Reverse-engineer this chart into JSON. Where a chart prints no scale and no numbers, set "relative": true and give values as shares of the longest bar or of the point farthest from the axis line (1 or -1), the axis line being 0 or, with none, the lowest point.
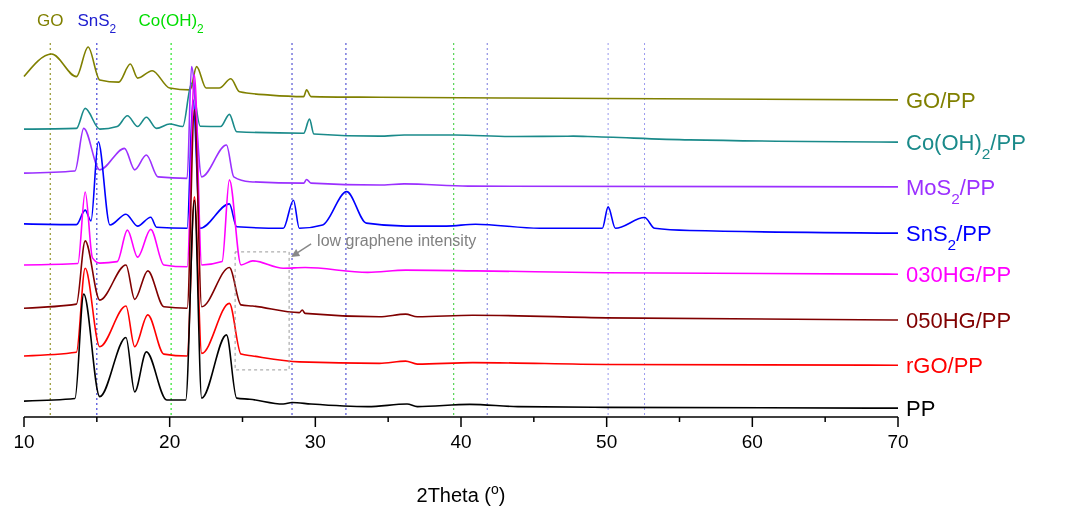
{
  "chart_data": {
    "type": "line",
    "relative": true,
    "xlabel": "2Theta ($^{o}$)",
    "xlim": [
      10,
      70
    ],
    "xticks": [
      10,
      {
        "value": 15,
        "label": null
      },
      20,
      {
        "value": 25,
        "label": null
      },
      30,
      {
        "value": 35,
        "label": null
      },
      40,
      {
        "value": 45,
        "label": null
      },
      50,
      {
        "value": 55,
        "label": null
      },
      60,
      {
        "value": 65,
        "label": null
      },
      70
    ],
    "tick_labels": "x",
    "line_style": "solid",
    "series": [
      {
        "name": "GO/PP",
        "color": "#808000",
        "x": [
          10,
          11.9,
          13.6,
          14.4,
          15.2,
          16.5,
          17.3,
          17.8,
          18.8,
          20.0,
          21.4,
          21.85,
          22.5,
          23.4,
          24.2,
          24.8,
          26.9,
          29.2,
          29.4,
          29.7,
          34.4,
          50,
          70
        ],
        "values": [
          0.92,
          0.981,
          0.92,
          1.0,
          0.911,
          0.905,
          0.954,
          0.916,
          0.936,
          0.889,
          0.884,
          0.947,
          0.889,
          0.889,
          0.914,
          0.879,
          0.87,
          0.866,
          0.884,
          0.866,
          0.864,
          0.861,
          0.857
        ]
      },
      {
        "name": "Co(OH)$_{2}$/PP",
        "color": "#1a8a8a",
        "x": [
          10,
          13.6,
          14.2,
          15.2,
          16.4,
          17.1,
          17.8,
          18.4,
          19.1,
          20.0,
          20.9,
          21.5,
          22.1,
          23.5,
          24.1,
          24.6,
          29.2,
          29.6,
          29.9,
          34.4,
          36.1,
          39.6,
          43.4,
          47.7,
          48.7,
          55.7,
          70
        ],
        "values": [
          0.778,
          0.78,
          0.834,
          0.778,
          0.785,
          0.814,
          0.785,
          0.81,
          0.78,
          0.792,
          0.785,
          0.902,
          0.786,
          0.785,
          0.818,
          0.771,
          0.767,
          0.805,
          0.765,
          0.759,
          0.762,
          0.762,
          0.758,
          0.759,
          0.758,
          0.749,
          0.743
        ]
      },
      {
        "name": "MoS$_{2}$/PP",
        "color": "#9b30ff",
        "x": [
          10,
          13.5,
          14.1,
          15.2,
          16.9,
          17.6,
          18.4,
          19.2,
          21.2,
          21.5,
          22.2,
          23.9,
          24.4,
          25.5,
          29.2,
          29.4,
          29.7,
          34.4,
          36.1,
          40.5,
          70
        ],
        "values": [
          0.659,
          0.665,
          0.78,
          0.668,
          0.726,
          0.668,
          0.708,
          0.649,
          0.645,
          0.947,
          0.649,
          0.735,
          0.649,
          0.636,
          0.632,
          0.642,
          0.632,
          0.627,
          0.63,
          0.624,
          0.622
        ]
      },
      {
        "name": "SnS$_{2}$/PP",
        "color": "#0000ff",
        "x": [
          10,
          13.6,
          14.2,
          14.6,
          15.1,
          15.9,
          17.0,
          17.8,
          18.7,
          19.1,
          21.2,
          21.6,
          22.1,
          24.1,
          24.6,
          27.8,
          28.5,
          28.9,
          30.5,
          32.15,
          33.5,
          36.2,
          39,
          41,
          45.4,
          49.7,
          50.1,
          50.6,
          52.6,
          53.3,
          55.7,
          70
        ],
        "values": [
          0.522,
          0.52,
          0.559,
          0.53,
          0.744,
          0.519,
          0.548,
          0.516,
          0.54,
          0.513,
          0.51,
          0.857,
          0.51,
          0.576,
          0.514,
          0.51,
          0.586,
          0.51,
          0.519,
          0.609,
          0.524,
          0.516,
          0.516,
          0.521,
          0.51,
          0.51,
          0.568,
          0.51,
          0.539,
          0.51,
          0.504,
          0.497
        ]
      },
      {
        "name": "030HG/PP",
        "color": "#ff00ff",
        "x": [
          10,
          13.7,
          14.2,
          14.7,
          15.2,
          16.4,
          17.1,
          17.8,
          18.7,
          19.6,
          21.2,
          21.7,
          22.2,
          23.6,
          24.1,
          24.9,
          25.7,
          27.8,
          29.3,
          33.6,
          36.2,
          41,
          50,
          70
        ],
        "values": [
          0.411,
          0.415,
          0.608,
          0.43,
          0.416,
          0.42,
          0.505,
          0.432,
          0.507,
          0.411,
          0.406,
          0.924,
          0.411,
          0.42,
          0.641,
          0.411,
          0.422,
          0.402,
          0.404,
          0.391,
          0.397,
          0.395,
          0.39,
          0.386
        ]
      },
      {
        "name": "050HG/PP",
        "color": "#800000",
        "x": [
          10,
          13.6,
          14.2,
          15.2,
          17.0,
          17.6,
          18.5,
          19.6,
          21.2,
          21.7,
          22.2,
          24.1,
          24.9,
          25.7,
          28.9,
          29.1,
          29.3,
          34.4,
          36.2,
          37,
          40.8,
          50,
          70
        ],
        "values": [
          0.294,
          0.305,
          0.476,
          0.316,
          0.411,
          0.318,
          0.395,
          0.298,
          0.294,
          0.83,
          0.298,
          0.404,
          0.303,
          0.3,
          0.282,
          0.289,
          0.28,
          0.271,
          0.278,
          0.271,
          0.275,
          0.268,
          0.262
        ]
      },
      {
        "name": "rGO/PP",
        "color": "#ff0000",
        "x": [
          10,
          13.6,
          14.2,
          15.2,
          17.0,
          17.6,
          18.5,
          19.6,
          21.2,
          21.7,
          22.2,
          24.1,
          24.9,
          25.7,
          28.9,
          34.4,
          36.2,
          37,
          40.8,
          50,
          70
        ],
        "values": [
          0.165,
          0.175,
          0.402,
          0.19,
          0.3,
          0.19,
          0.276,
          0.17,
          0.165,
          0.595,
          0.172,
          0.307,
          0.17,
          0.165,
          0.149,
          0.145,
          0.151,
          0.143,
          0.147,
          0.142,
          0.14
        ]
      },
      {
        "name": "PP",
        "color": "#000000",
        "x": [
          10,
          13.5,
          14.1,
          15.2,
          17.0,
          17.6,
          18.4,
          19.8,
          21.1,
          21.7,
          22.2,
          23.9,
          24.6,
          25.5,
          27.8,
          28.4,
          29.7,
          33.6,
          36.3,
          37,
          40.6,
          43.9,
          50,
          70
        ],
        "values": [
          0.043,
          0.05,
          0.332,
          0.055,
          0.215,
          0.068,
          0.176,
          0.046,
          0.046,
          0.586,
          0.051,
          0.222,
          0.051,
          0.048,
          0.035,
          0.039,
          0.035,
          0.028,
          0.035,
          0.028,
          0.034,
          0.028,
          0.026,
          0.024
        ]
      }
    ],
    "ref_lines": [
      {
        "axis": "x",
        "value": 11.8,
        "label": "GO",
        "color": "#808000",
        "line_style": "dotted"
      },
      {
        "axis": "x",
        "value": 15.0,
        "label": "SnS$_{2}$",
        "color": "#2020d0",
        "line_style": "dotted"
      },
      {
        "axis": "x",
        "value": 20.1,
        "label": "Co(OH)$_{2}$",
        "color": "#00dd00",
        "line_style": "dotted"
      },
      {
        "axis": "x",
        "value": 28.4,
        "color": "#3333cc",
        "line_style": "dotted"
      },
      {
        "axis": "x",
        "value": 32.1,
        "color": "#3333cc",
        "line_style": "dotted"
      },
      {
        "axis": "x",
        "value": 39.5,
        "color": "#33cc33",
        "line_style": "dotted"
      },
      {
        "axis": "x",
        "value": 41.8,
        "color": "#7777dd",
        "line_style": "dotted"
      },
      {
        "axis": "x",
        "value": 50.1,
        "color": "#9999ee",
        "line_style": "dotted"
      },
      {
        "axis": "x",
        "value": 52.6,
        "color": "#9999ee",
        "line_style": "dotted"
      }
    ],
    "annotations": [
      {
        "text": "low graphene intensity",
        "x": 28.2,
        "y": 0.43
      }
    ]
  }
}
